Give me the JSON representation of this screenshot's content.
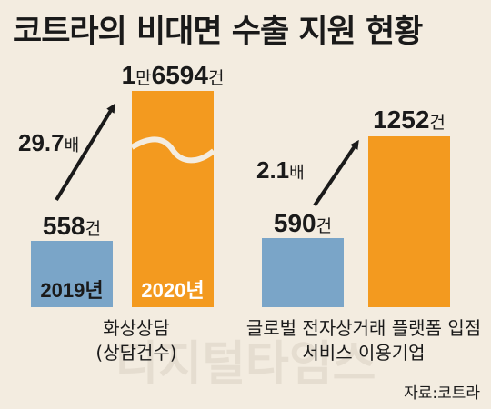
{
  "title": "코트라의 비대면 수출 지원 현황",
  "source": "자료:코트라",
  "watermark": "디지털타임스",
  "chart_data": [
    {
      "type": "bar",
      "category_label_lines": [
        "화상상담",
        "(상담건수)"
      ],
      "unit": "건",
      "series": [
        {
          "name": "2019년",
          "value": 558,
          "label_num": "558",
          "color": "#7aa5c8"
        },
        {
          "name": "2020년",
          "value": 16594,
          "label_prefix": "1",
          "label_mid": "만",
          "label_num": "6594",
          "color": "#f39a1f"
        }
      ],
      "growth": {
        "num": "29.7",
        "unit": "배"
      },
      "axis_break": true
    },
    {
      "type": "bar",
      "category_label_lines": [
        "글로벌 전자상거래 플랫폼 입점",
        "서비스 이용기업"
      ],
      "unit": "건",
      "series": [
        {
          "value": 590,
          "label_num": "590",
          "color": "#7aa5c8"
        },
        {
          "value": 1252,
          "label_num": "1252",
          "color": "#f39a1f"
        }
      ],
      "growth": {
        "num": "2.1",
        "unit": "배"
      }
    }
  ]
}
